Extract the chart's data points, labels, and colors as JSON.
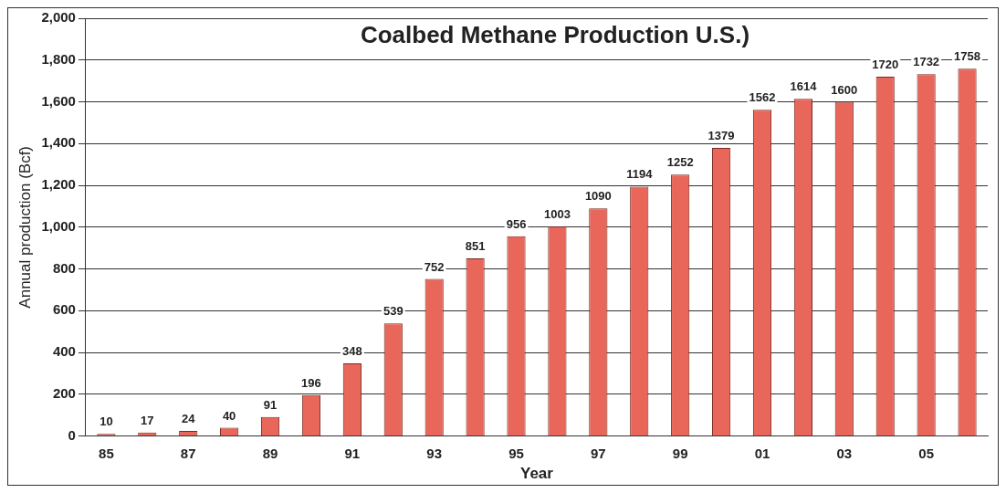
{
  "chart_data": {
    "type": "bar",
    "title": "Coalbed Methane Production U.S.)",
    "xlabel": "Year",
    "ylabel": "Annual production (Bcf)",
    "categories": [
      "85",
      null,
      "87",
      null,
      "89",
      null,
      "91",
      null,
      "93",
      null,
      "95",
      null,
      "97",
      null,
      "99",
      null,
      "01",
      null,
      "03",
      null,
      "05",
      null
    ],
    "values": [
      10,
      17,
      24,
      40,
      91,
      196,
      348,
      539,
      752,
      851,
      956,
      1003,
      1090,
      1194,
      1252,
      1379,
      1562,
      1614,
      1600,
      1720,
      1732,
      1758
    ],
    "color": "#e8675a",
    "ylim": [
      0,
      2000
    ],
    "yticks": [
      0,
      200,
      400,
      600,
      800,
      {
        "value": 1000,
        "label": "1,000"
      },
      {
        "value": 1200,
        "label": "1,200"
      },
      {
        "value": 1400,
        "label": "1,400"
      },
      {
        "value": 1600,
        "label": "1,600"
      },
      {
        "value": 1800,
        "label": "1,800"
      },
      {
        "value": 2000,
        "label": "2,000"
      }
    ],
    "grid": "y",
    "data_labels": true
  }
}
